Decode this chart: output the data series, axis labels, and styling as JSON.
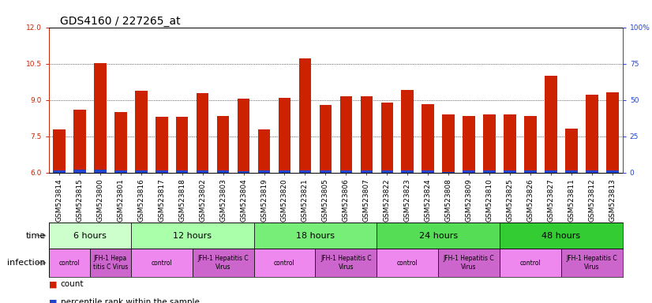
{
  "title": "GDS4160 / 227265_at",
  "samples": [
    "GSM523814",
    "GSM523815",
    "GSM523800",
    "GSM523801",
    "GSM523816",
    "GSM523817",
    "GSM523818",
    "GSM523802",
    "GSM523803",
    "GSM523804",
    "GSM523819",
    "GSM523820",
    "GSM523821",
    "GSM523805",
    "GSM523806",
    "GSM523807",
    "GSM523822",
    "GSM523823",
    "GSM523824",
    "GSM523808",
    "GSM523809",
    "GSM523810",
    "GSM523825",
    "GSM523826",
    "GSM523827",
    "GSM523811",
    "GSM523812",
    "GSM523813"
  ],
  "count_values": [
    7.8,
    8.6,
    10.52,
    8.5,
    9.38,
    8.3,
    8.3,
    9.3,
    8.35,
    9.05,
    7.8,
    9.1,
    10.7,
    8.8,
    9.15,
    9.15,
    8.9,
    9.42,
    8.82,
    8.4,
    8.35,
    8.4,
    8.4,
    8.35,
    10.0,
    7.82,
    9.22,
    9.32
  ],
  "blue_bottom": [
    6.0,
    6.0,
    6.0,
    6.0,
    6.0,
    6.0,
    6.0,
    6.0,
    6.0,
    6.0,
    6.0,
    6.0,
    6.0,
    6.0,
    6.0,
    6.0,
    6.0,
    6.0,
    6.0,
    6.0,
    6.0,
    6.0,
    6.0,
    6.0,
    6.0,
    6.0,
    6.0,
    6.0
  ],
  "blue_height": [
    0.08,
    0.12,
    0.12,
    0.1,
    0.1,
    0.1,
    0.09,
    0.1,
    0.1,
    0.05,
    0.09,
    0.09,
    0.09,
    0.09,
    0.09,
    0.09,
    0.08,
    0.09,
    0.09,
    0.03,
    0.09,
    0.09,
    0.09,
    0.09,
    0.1,
    0.09,
    0.09,
    0.09
  ],
  "base_value": 6.0,
  "ylim": [
    6.0,
    12.0
  ],
  "yticks": [
    6,
    7.5,
    9,
    10.5,
    12
  ],
  "right_ytick_labels": [
    "0",
    "25",
    "50",
    "75",
    "100%"
  ],
  "right_tick_positions": [
    6.0,
    7.5,
    9.0,
    10.5,
    12.0
  ],
  "bar_color": "#cc2200",
  "blue_color": "#2244cc",
  "time_groups": [
    {
      "label": "6 hours",
      "start": 0,
      "end": 4,
      "color": "#ccffcc"
    },
    {
      "label": "12 hours",
      "start": 4,
      "end": 10,
      "color": "#aaffaa"
    },
    {
      "label": "18 hours",
      "start": 10,
      "end": 16,
      "color": "#77ee77"
    },
    {
      "label": "24 hours",
      "start": 16,
      "end": 22,
      "color": "#55dd55"
    },
    {
      "label": "48 hours",
      "start": 22,
      "end": 28,
      "color": "#33cc33"
    }
  ],
  "infection_groups": [
    {
      "label": "control",
      "start": 0,
      "end": 2,
      "color": "#ee88ee"
    },
    {
      "label": "JFH-1 Hepa\ntitis C Virus",
      "start": 2,
      "end": 4,
      "color": "#cc66cc"
    },
    {
      "label": "control",
      "start": 4,
      "end": 7,
      "color": "#ee88ee"
    },
    {
      "label": "JFH-1 Hepatitis C\nVirus",
      "start": 7,
      "end": 10,
      "color": "#cc66cc"
    },
    {
      "label": "control",
      "start": 10,
      "end": 13,
      "color": "#ee88ee"
    },
    {
      "label": "JFH-1 Hepatitis C\nVirus",
      "start": 13,
      "end": 16,
      "color": "#cc66cc"
    },
    {
      "label": "control",
      "start": 16,
      "end": 19,
      "color": "#ee88ee"
    },
    {
      "label": "JFH-1 Hepatitis C\nVirus",
      "start": 19,
      "end": 22,
      "color": "#cc66cc"
    },
    {
      "label": "control",
      "start": 22,
      "end": 25,
      "color": "#ee88ee"
    },
    {
      "label": "JFH-1 Hepatitis C\nVirus",
      "start": 25,
      "end": 28,
      "color": "#cc66cc"
    }
  ],
  "left_axis_color": "#cc2200",
  "right_axis_color": "#2244cc",
  "background_color": "#ffffff",
  "title_fontsize": 10,
  "tick_fontsize": 6.5,
  "row_fontsize": 8,
  "legend_fontsize": 7.5
}
